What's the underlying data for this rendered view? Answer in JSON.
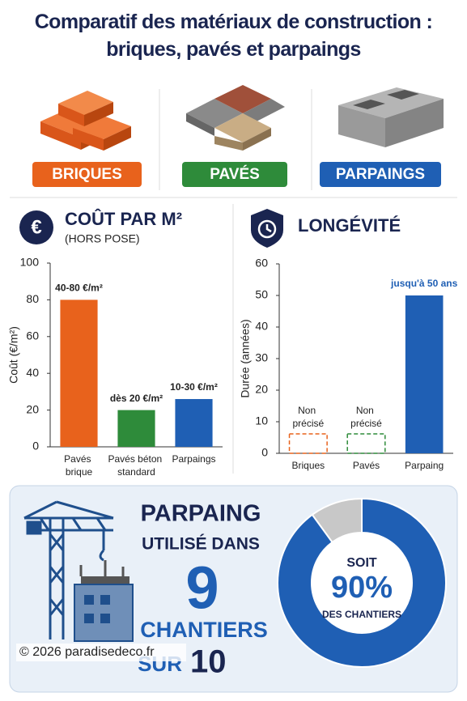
{
  "title": "Comparatif des matériaux de construction : briques, pavés et parpaings",
  "materials": [
    {
      "label": "BRIQUES",
      "color": "#e8621c"
    },
    {
      "label": "PAVÉS",
      "color": "#2e8b3a"
    },
    {
      "label": "PARPAINGS",
      "color": "#1f5fb4"
    }
  ],
  "chart_data": [
    {
      "type": "bar",
      "title": "COÛT PAR M²",
      "subtitle": "(HORS POSE)",
      "ylabel": "Coût (€/m²)",
      "categories": [
        "Pavés brique",
        "Pavés béton standard",
        "Parpaings"
      ],
      "values": [
        80,
        20,
        26
      ],
      "value_labels": [
        "40-80 €/m²",
        "dès 20 €/m²",
        "10-30 €/m²"
      ],
      "colors": [
        "#e8621c",
        "#2e8b3a",
        "#1f5fb4"
      ],
      "ylim": [
        0,
        100
      ],
      "yticks": [
        0,
        20,
        40,
        60,
        80,
        100
      ]
    },
    {
      "type": "bar",
      "title": "LONGÉVITÉ",
      "ylabel": "Durée (années)",
      "categories": [
        "Briques",
        "Pavés",
        "Parpaing"
      ],
      "values": [
        null,
        null,
        50
      ],
      "value_labels": [
        "Non précisé",
        "Non précisé",
        "jusqu'à 50 ans"
      ],
      "colors": [
        "#e8621c",
        "#2e8b3a",
        "#1f5fb4"
      ],
      "ylim": [
        0,
        60
      ],
      "yticks": [
        0,
        10,
        20,
        30,
        40,
        50,
        60
      ]
    },
    {
      "type": "pie",
      "values": [
        90,
        10
      ],
      "value_labels": [
        "90%",
        null
      ],
      "colors": [
        "#1f5fb4",
        "#c8c8c8"
      ],
      "prefix": "SOIT",
      "suffix": "DES CHANTIERS"
    }
  ],
  "stat": {
    "headline": "PARPAING",
    "line1": "UTILISÉ DANS",
    "count": 9,
    "line2": "CHANTIERS",
    "line3": "SUR",
    "total": 10
  },
  "copyright": "© 2026 paradisedeco.fr"
}
